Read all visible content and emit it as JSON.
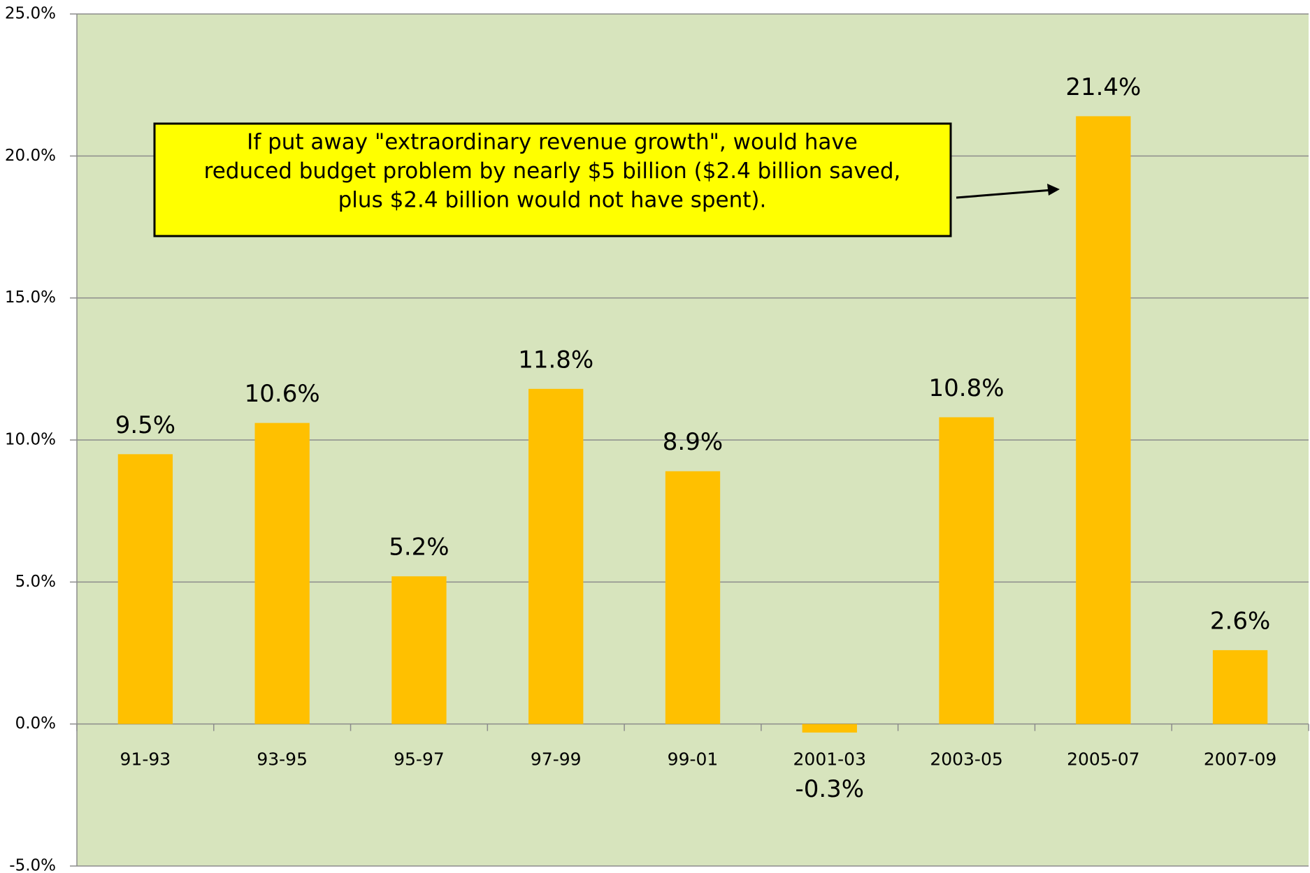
{
  "chart_data": {
    "type": "bar",
    "categories": [
      "91-93",
      "93-95",
      "95-97",
      "97-99",
      "99-01",
      "2001-03",
      "2003-05",
      "2005-07",
      "2007-09"
    ],
    "values": [
      9.5,
      10.6,
      5.2,
      11.8,
      8.9,
      -0.3,
      10.8,
      21.4,
      2.6
    ],
    "value_labels": [
      "9.5%",
      "10.6%",
      "5.2%",
      "11.8%",
      "8.9%",
      "-0.3%",
      "10.8%",
      "21.4%",
      "2.6%"
    ],
    "color": "#ffc000",
    "background": "#d7e4bd",
    "ylim": [
      -5,
      25
    ],
    "yticks": [
      {
        "value": -5,
        "label": "-5.0%"
      },
      {
        "value": 0,
        "label": "0.0%"
      },
      {
        "value": 5,
        "label": "5.0%"
      },
      {
        "value": 10,
        "label": "10.0%"
      },
      {
        "value": 15,
        "label": "15.0%"
      },
      {
        "value": 20,
        "label": "20.0%"
      },
      {
        "value": 25,
        "label": "25.0%"
      }
    ],
    "grid": true,
    "annotation": [
      "If put away \"extraordinary revenue growth\", would have",
      "reduced budget problem by nearly $5 billion ($2.4 billion saved,",
      "plus $2.4 billion would not have spent)."
    ]
  }
}
